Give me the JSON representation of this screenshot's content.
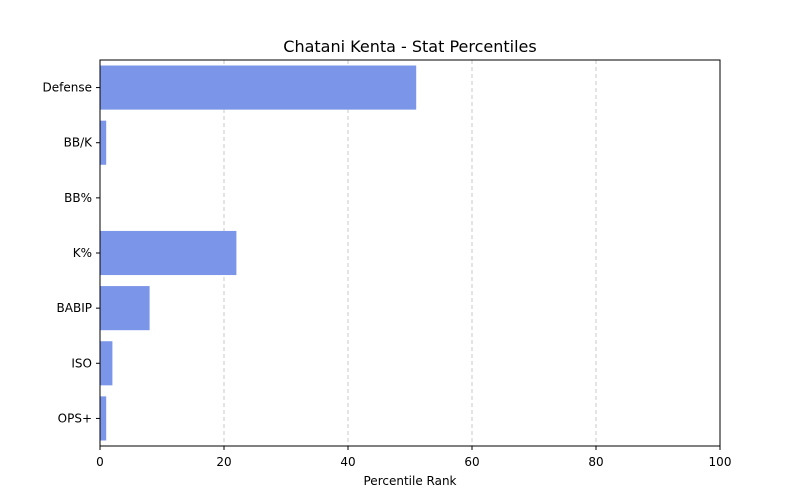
{
  "chart_data": {
    "type": "bar",
    "orientation": "horizontal",
    "title": "Chatani Kenta - Stat Percentiles",
    "xlabel": "Percentile Rank",
    "ylabel": "",
    "xlim": [
      0,
      100
    ],
    "xticks": [
      0,
      20,
      40,
      60,
      80,
      100
    ],
    "grid": "x-dashed",
    "bar_color": "#7b96e8",
    "categories": [
      "Defense",
      "BB/K",
      "BB%",
      "K%",
      "BABIP",
      "ISO",
      "OPS+"
    ],
    "values": [
      51,
      1,
      0,
      22,
      8,
      2,
      1
    ]
  }
}
